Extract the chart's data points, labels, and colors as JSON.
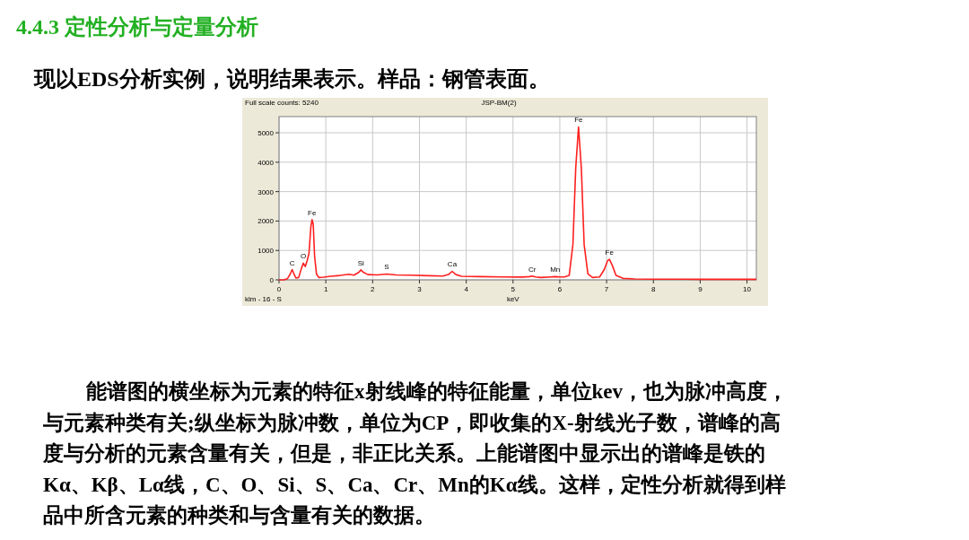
{
  "chart_data": {
    "type": "line",
    "title": "4.4.3  定性分析与定量分析",
    "subtitle": "现以EDS分析实例，说明结果表示。样品：钢管表面。",
    "xlabel": "keV",
    "x": [
      0,
      0.1,
      0.18,
      0.24,
      0.28,
      0.32,
      0.36,
      0.42,
      0.48,
      0.52,
      0.56,
      0.6,
      0.64,
      0.68,
      0.705,
      0.73,
      0.76,
      0.8,
      0.85,
      0.95,
      1.1,
      1.3,
      1.5,
      1.6,
      1.7,
      1.75,
      1.8,
      1.9,
      2.1,
      2.3,
      2.5,
      2.8,
      3.2,
      3.5,
      3.62,
      3.7,
      3.78,
      3.9,
      4.3,
      4.8,
      5.2,
      5.35,
      5.41,
      5.48,
      5.6,
      5.8,
      5.9,
      6.0,
      6.1,
      6.2,
      6.28,
      6.34,
      6.4,
      6.46,
      6.52,
      6.6,
      6.7,
      6.85,
      6.95,
      7.02,
      7.06,
      7.12,
      7.2,
      7.35,
      7.6,
      8,
      9,
      10.2
    ],
    "series": [
      {
        "color": "#ff2020",
        "values": [
          0,
          0,
          40,
          200,
          350,
          200,
          60,
          80,
          400,
          570,
          450,
          650,
          900,
          1800,
          2050,
          1900,
          800,
          200,
          80,
          90,
          120,
          150,
          190,
          160,
          250,
          340,
          260,
          180,
          170,
          200,
          170,
          160,
          140,
          130,
          180,
          290,
          180,
          120,
          110,
          100,
          95,
          110,
          130,
          100,
          80,
          100,
          110,
          100,
          100,
          150,
          1200,
          3800,
          5200,
          3800,
          1200,
          200,
          80,
          100,
          350,
          650,
          700,
          500,
          150,
          50,
          30,
          25,
          20,
          20
        ]
      }
    ],
    "xlim": [
      0,
      10.2
    ],
    "ylim": [
      0,
      5550
    ],
    "xticks": [
      0,
      1,
      2,
      3,
      4,
      5,
      6,
      7,
      8,
      9,
      10
    ],
    "yticks": [
      0,
      1000,
      2000,
      3000,
      4000,
      5000
    ],
    "grid": true,
    "annotations": [
      "Full scale counts: 5240",
      "JSP-BM(2)",
      "klm - 16 - S",
      "能谱图的横坐标为元素的特征x射线峰的特征能量，单位kev，也为脉冲高度，",
      "与元素种类有关;纵坐标为脉冲数，单位为CP，即收集的X-射线光子数，谱峰的高",
      "度与分析的元素含量有关，但是，非正比关系。上能谱图中显示出的谱峰是铁的",
      "Kα、Kβ、Lα线，C、O、Si、S、Ca、Cr、Mn的Kα线。这样，定性分析就得到样",
      "品中所含元素的种类和与含量有关的数据。",
      {
        "text": "C",
        "x": 0.28,
        "y": 350
      },
      {
        "text": "O",
        "x": 0.52,
        "y": 570
      },
      {
        "text": "Fe",
        "x": 0.705,
        "y": 2050
      },
      {
        "text": "Si",
        "x": 1.75,
        "y": 340
      },
      {
        "text": "S",
        "x": 2.3,
        "y": 200
      },
      {
        "text": "Ca",
        "x": 3.7,
        "y": 290
      },
      {
        "text": "Cr",
        "x": 5.41,
        "y": 130
      },
      {
        "text": "Mn",
        "x": 5.9,
        "y": 110
      },
      {
        "text": "Fe",
        "x": 6.4,
        "y": 5200
      },
      {
        "text": "Fe",
        "x": 7.06,
        "y": 700
      }
    ]
  }
}
